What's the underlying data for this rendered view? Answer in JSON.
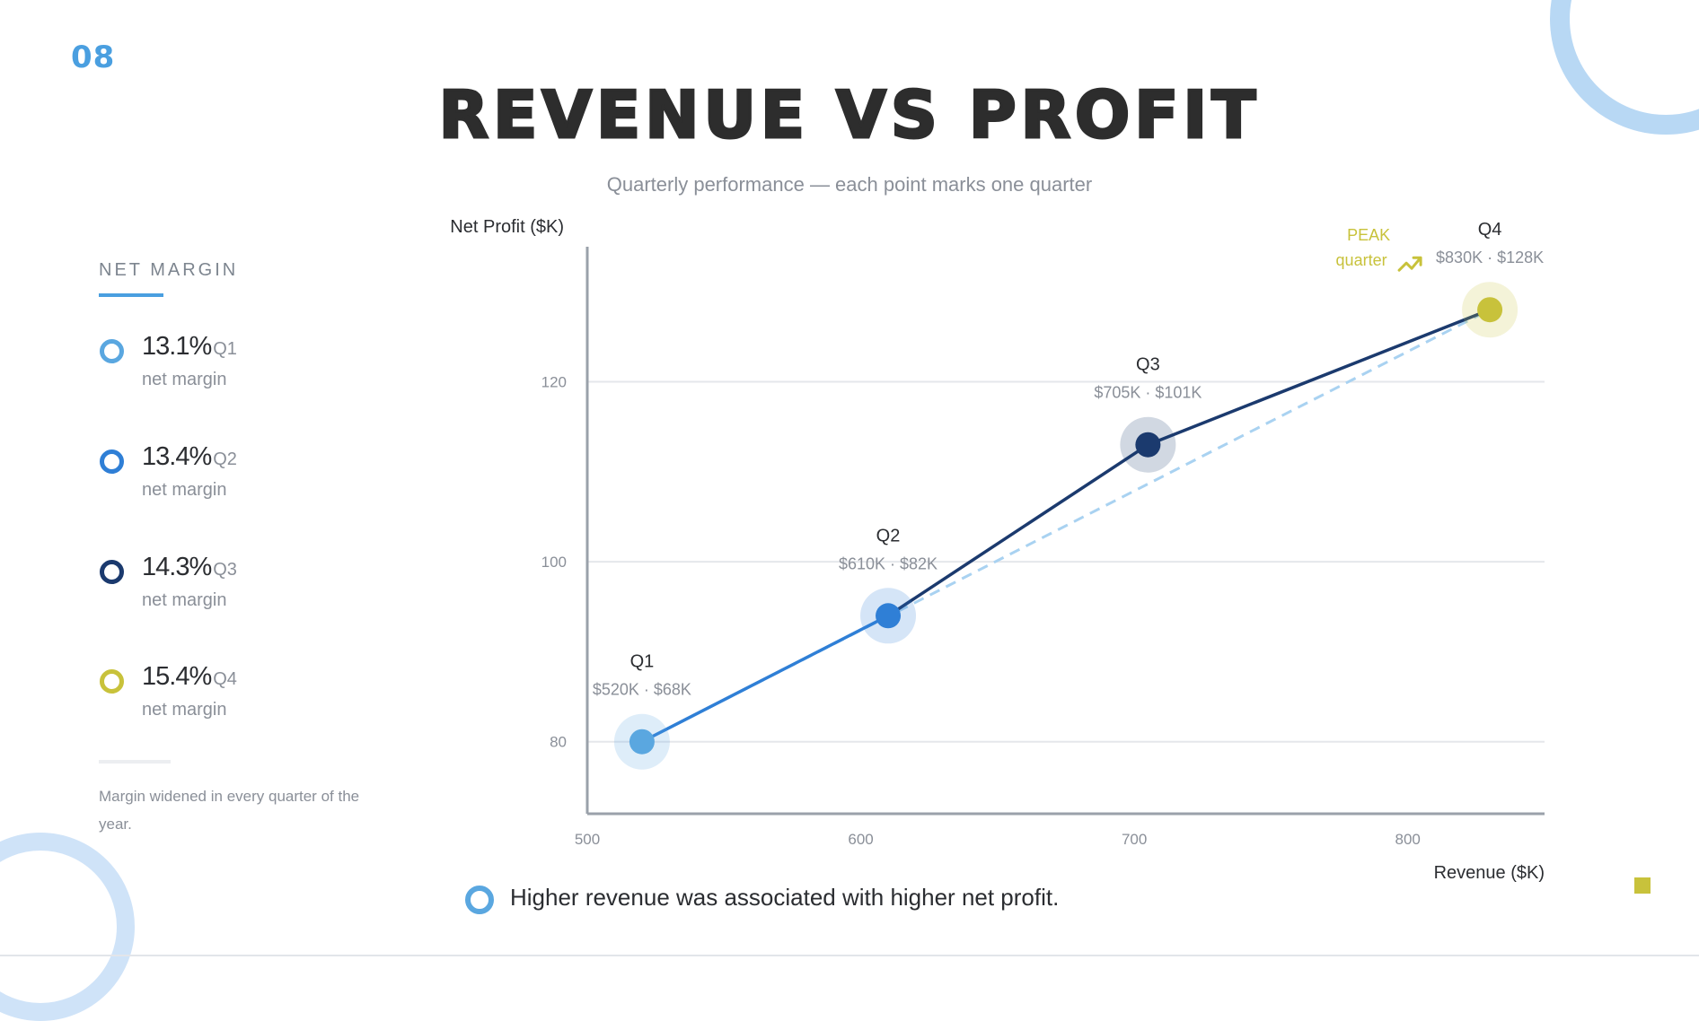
{
  "slide": {
    "number": "08",
    "title": "REVENUE VS PROFIT",
    "subtitle": "Quarterly performance — each point marks one quarter"
  },
  "sidebar": {
    "heading": "NET MARGIN",
    "items": [
      {
        "value": "13.1%",
        "quarter": "Q1",
        "caption": "net margin",
        "color": "#5aa7e0"
      },
      {
        "value": "13.4%",
        "quarter": "Q2",
        "caption": "net margin",
        "color": "#2f7fd6"
      },
      {
        "value": "14.3%",
        "quarter": "Q3",
        "caption": "net margin",
        "color": "#1b3a6e"
      },
      {
        "value": "15.4%",
        "quarter": "Q4",
        "caption": "net margin",
        "color": "#c8c23b"
      }
    ],
    "note": "Margin widened in every quarter of the year."
  },
  "chart_data": {
    "type": "scatter",
    "xlabel": "Revenue ($K)",
    "ylabel": "Net Profit ($K)",
    "xlim": [
      500,
      850
    ],
    "ylim": [
      72,
      135
    ],
    "xticks": [
      500,
      600,
      700,
      800
    ],
    "yticks": [
      80,
      100,
      120
    ],
    "grid": "horizontal",
    "points": [
      {
        "label": "Q1",
        "x": 520,
        "y": 68,
        "display_y": 80,
        "annotation": "$520K · $68K",
        "color": "#5aa7e0"
      },
      {
        "label": "Q2",
        "x": 610,
        "y": 82,
        "display_y": 94,
        "annotation": "$610K · $82K",
        "color": "#2f7fd6"
      },
      {
        "label": "Q3",
        "x": 705,
        "y": 101,
        "display_y": 113,
        "annotation": "$705K · $101K",
        "color": "#1b3a6e"
      },
      {
        "label": "Q4",
        "x": 830,
        "y": 128,
        "display_y": 128,
        "annotation": "$830K · $128K",
        "color": "#c8c23b"
      }
    ],
    "trendline": {
      "style": "dashed",
      "from": {
        "x": 520,
        "y": 80
      },
      "to": {
        "x": 830,
        "y": 128
      },
      "color": "#a9d2f1"
    },
    "callout": {
      "line1": "PEAK",
      "line2": "quarter",
      "icon": "trend-up-icon",
      "target": "Q4",
      "color": "#c8c23b"
    }
  },
  "takeaway": {
    "text": "Higher revenue was associated with higher net profit.",
    "icon_color": "#5aa7e0"
  }
}
